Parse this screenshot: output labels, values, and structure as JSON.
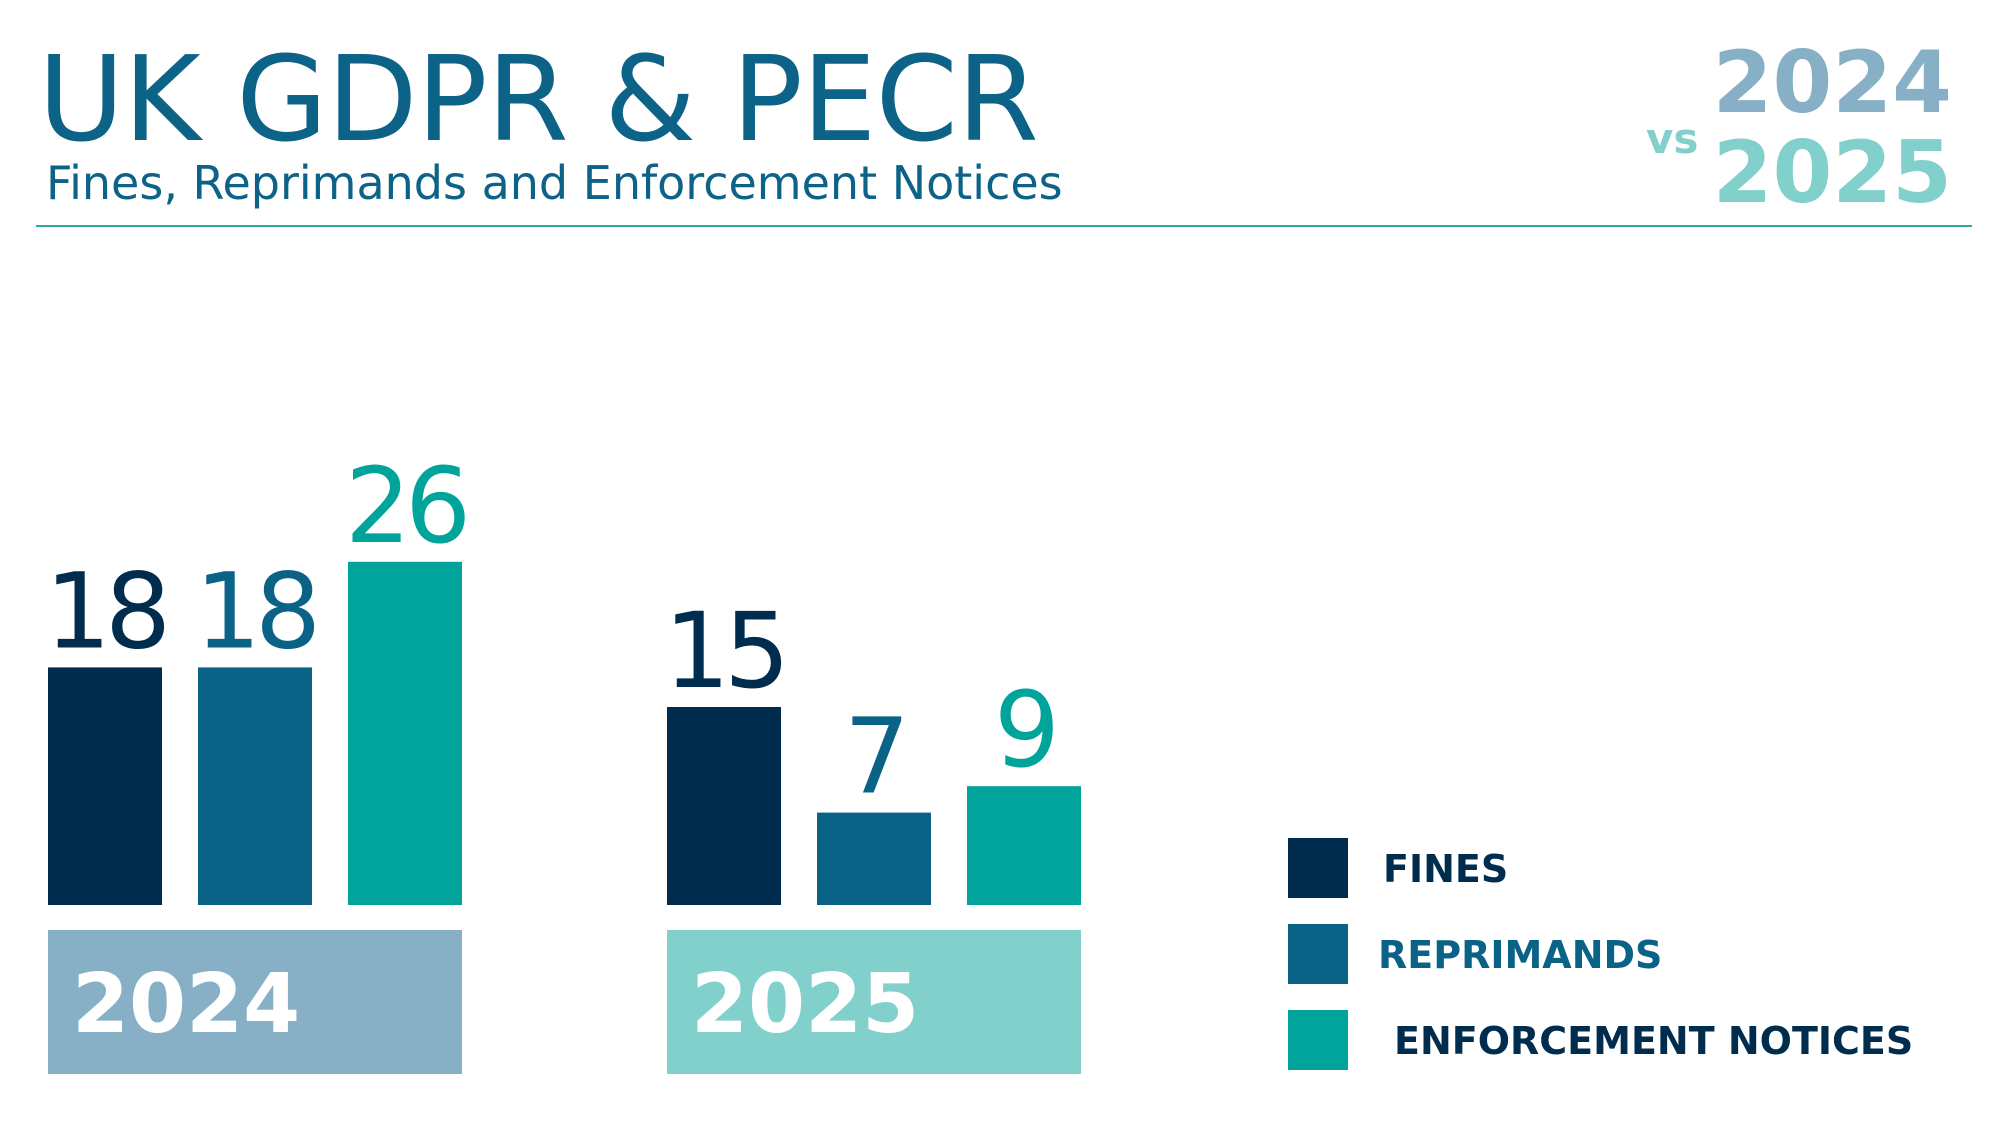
{
  "header": {
    "title": "UK GDPR & PECR",
    "subtitle": "Fines, Reprimands and Enforcement Notices",
    "vs_label": "vs",
    "year_top": "2024",
    "year_bottom": "2025"
  },
  "colors": {
    "title": "#0c6287",
    "fines": "#002d4d",
    "reprimands": "#0a6287",
    "enforcement_notices": "#00a49b",
    "year_2024_band": "#87afc5",
    "year_2025_band": "#82d0cb",
    "rule": "#2aa79f"
  },
  "legend": [
    {
      "label": "FINES",
      "color": "#002d4d",
      "text_color": "#002d4d"
    },
    {
      "label": "REPRIMANDS",
      "color": "#0a6287",
      "text_color": "#0a6287"
    },
    {
      "label": "ENFORCEMENT NOTICES",
      "color": "#00a49b",
      "text_color": "#002d4d"
    }
  ],
  "chart_data": {
    "type": "bar",
    "title": "UK GDPR & PECR",
    "subtitle": "Fines, Reprimands and Enforcement Notices",
    "categories": [
      "2024",
      "2025"
    ],
    "series": [
      {
        "name": "FINES",
        "values": [
          18,
          15
        ],
        "color": "#002d4d"
      },
      {
        "name": "REPRIMANDS",
        "values": [
          18,
          7
        ],
        "color": "#0a6287"
      },
      {
        "name": "ENFORCEMENT NOTICES",
        "values": [
          26,
          9
        ],
        "color": "#00a49b"
      }
    ],
    "category_colors": [
      "#87afc5",
      "#82d0cb"
    ],
    "xlabel": "",
    "ylabel": "",
    "ylim": [
      0,
      26
    ],
    "grid": false,
    "legend_position": "bottom-right",
    "data_labels": true
  }
}
